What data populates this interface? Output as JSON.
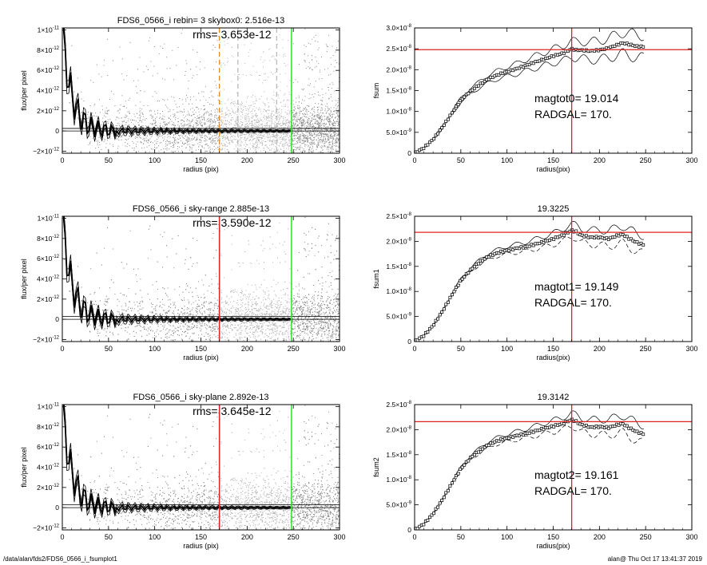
{
  "footer": {
    "left": "/data/alan/fds2/FDS6_0566_i_fsumplot1",
    "right": "alan@  Thu Oct 17 13:41:37 2019"
  },
  "chart_data": [
    {
      "id": "profile-0",
      "type": "scatter",
      "title": "FDS6_0566_i rebin= 3    skybox0:  2.516e-13",
      "annotation": "rms= 3.653e-12",
      "xlabel": "radius (pix)",
      "ylabel": "flux/per pixel",
      "xlim": [
        0,
        300
      ],
      "ylim": [
        -2.2e-12,
        1.02e-11
      ],
      "xticks": [
        0,
        50,
        100,
        150,
        200,
        250,
        300
      ],
      "yticks": [
        {
          "value": 1e-11,
          "label": "1×10",
          "exp": "-11"
        },
        {
          "value": 8e-12,
          "label": "8×10",
          "exp": "-12"
        },
        {
          "value": 6e-12,
          "label": "6×10",
          "exp": "-12"
        },
        {
          "value": 4e-12,
          "label": "4×10",
          "exp": "-12"
        },
        {
          "value": 2e-12,
          "label": "2×10",
          "exp": "-12"
        },
        {
          "value": 0,
          "label": "0",
          "exp": ""
        },
        {
          "value": -2e-12,
          "label": "−2×10",
          "exp": "-12"
        }
      ],
      "sky_level": 2.516e-13,
      "vlines": [
        {
          "x": 170,
          "color": "#e08a2c",
          "style": "dashed"
        },
        {
          "x": 190,
          "color": "#bbbbbb",
          "style": "dashed"
        },
        {
          "x": 232,
          "color": "#bbbbbb",
          "style": "dashed"
        },
        {
          "x": 248,
          "color": "#33dd33",
          "style": "solid"
        }
      ]
    },
    {
      "id": "profile-1",
      "type": "scatter",
      "title": "FDS6_0566_i sky-range  2.885e-13",
      "annotation": "rms= 3.590e-12",
      "xlabel": "radius (pix)",
      "ylabel": "flux/per pixel",
      "xlim": [
        0,
        300
      ],
      "ylim": [
        -2.2e-12,
        1.02e-11
      ],
      "xticks": [
        0,
        50,
        100,
        150,
        200,
        250,
        300
      ],
      "yticks": [
        {
          "value": 1e-11,
          "label": "1×10",
          "exp": "-11"
        },
        {
          "value": 8e-12,
          "label": "8×10",
          "exp": "-12"
        },
        {
          "value": 6e-12,
          "label": "6×10",
          "exp": "-12"
        },
        {
          "value": 4e-12,
          "label": "4×10",
          "exp": "-12"
        },
        {
          "value": 2e-12,
          "label": "2×10",
          "exp": "-12"
        },
        {
          "value": 0,
          "label": "0",
          "exp": ""
        },
        {
          "value": -2e-12,
          "label": "−2×10",
          "exp": "-12"
        }
      ],
      "sky_level": 2.885e-13,
      "vlines": [
        {
          "x": 170,
          "color": "#dd2222",
          "style": "solid"
        },
        {
          "x": 248,
          "color": "#33dd33",
          "style": "solid"
        }
      ]
    },
    {
      "id": "profile-2",
      "type": "scatter",
      "title": "FDS6_0566_i sky-plane  2.892e-13",
      "annotation": "rms= 3.645e-12",
      "xlabel": "radius (pix)",
      "ylabel": "flux/per pixel",
      "xlim": [
        0,
        300
      ],
      "ylim": [
        -2.2e-12,
        1.02e-11
      ],
      "xticks": [
        0,
        50,
        100,
        150,
        200,
        250,
        300
      ],
      "yticks": [
        {
          "value": 1e-11,
          "label": "1×10",
          "exp": "-11"
        },
        {
          "value": 8e-12,
          "label": "8×10",
          "exp": "-12"
        },
        {
          "value": 6e-12,
          "label": "6×10",
          "exp": "-12"
        },
        {
          "value": 4e-12,
          "label": "4×10",
          "exp": "-12"
        },
        {
          "value": 2e-12,
          "label": "2×10",
          "exp": "-12"
        },
        {
          "value": 0,
          "label": "0",
          "exp": ""
        },
        {
          "value": -2e-12,
          "label": "−2×10",
          "exp": "-12"
        }
      ],
      "sky_level": 2.892e-13,
      "vlines": [
        {
          "x": 170,
          "color": "#dd2222",
          "style": "solid"
        },
        {
          "x": 248,
          "color": "#33dd33",
          "style": "solid"
        }
      ]
    },
    {
      "id": "growth-0",
      "type": "line",
      "title": "",
      "xlabel": "radius(pix)",
      "ylabel": "fsum",
      "xlim": [
        0,
        300
      ],
      "ylim": [
        0,
        3e-08
      ],
      "xticks": [
        0,
        50,
        100,
        150,
        200,
        250,
        300
      ],
      "yticks": [
        {
          "value": 3e-08,
          "label": "3.0×10",
          "exp": "-8"
        },
        {
          "value": 2.5e-08,
          "label": "2.5×10",
          "exp": "-8"
        },
        {
          "value": 2e-08,
          "label": "2.0×10",
          "exp": "-8"
        },
        {
          "value": 1.5e-08,
          "label": "1.5×10",
          "exp": "-8"
        },
        {
          "value": 1e-08,
          "label": "1.0×10",
          "exp": "-8"
        },
        {
          "value": 5e-09,
          "label": "5.0×10",
          "exp": "-9"
        },
        {
          "value": 0,
          "label": "0",
          "exp": ""
        }
      ],
      "magtext": "magtot0=  19.014",
      "radtext": "RADGAL=    170.",
      "hline": 2.48e-08,
      "vline": 170,
      "x": [
        0,
        10,
        20,
        30,
        40,
        50,
        60,
        70,
        80,
        90,
        100,
        110,
        120,
        130,
        140,
        150,
        160,
        165,
        170,
        175,
        180,
        190,
        200,
        210,
        220,
        225,
        230,
        240,
        248
      ],
      "values": [
        0,
        1.3e-09,
        3.3e-09,
        6.2e-09,
        9.5e-09,
        1.27e-08,
        1.48e-08,
        1.64e-08,
        1.78e-08,
        1.88e-08,
        1.95e-08,
        2.02e-08,
        2.1e-08,
        2.18e-08,
        2.25e-08,
        2.33e-08,
        2.39e-08,
        2.44e-08,
        2.5e-08,
        2.47e-08,
        2.47e-08,
        2.45e-08,
        2.47e-08,
        2.52e-08,
        2.6e-08,
        2.64e-08,
        2.62e-08,
        2.56e-08,
        2.55e-08
      ],
      "spread": 1.5
    },
    {
      "id": "growth-1",
      "type": "line",
      "title": "19.3225",
      "xlabel": "radius(pix)",
      "ylabel": "fsum1",
      "xlim": [
        0,
        300
      ],
      "ylim": [
        0,
        2.5e-08
      ],
      "xticks": [
        0,
        50,
        100,
        150,
        200,
        250,
        300
      ],
      "yticks": [
        {
          "value": 2.5e-08,
          "label": "2.5×10",
          "exp": "-8"
        },
        {
          "value": 2e-08,
          "label": "2.0×10",
          "exp": "-8"
        },
        {
          "value": 1.5e-08,
          "label": "1.5×10",
          "exp": "-8"
        },
        {
          "value": 1e-08,
          "label": "1.0×10",
          "exp": "-8"
        },
        {
          "value": 5e-09,
          "label": "5.0×10",
          "exp": "-9"
        },
        {
          "value": 0,
          "label": "0",
          "exp": ""
        }
      ],
      "magtext": "magtot1=  19.149",
      "radtext": "RADGAL=    170.",
      "hline": 2.18e-08,
      "vline": 170,
      "x": [
        0,
        10,
        20,
        30,
        40,
        50,
        60,
        70,
        80,
        90,
        100,
        110,
        120,
        130,
        140,
        150,
        160,
        170,
        175,
        180,
        190,
        200,
        210,
        220,
        225,
        230,
        240,
        248
      ],
      "values": [
        0,
        1.2e-09,
        3.2e-09,
        6e-09,
        9.2e-09,
        1.22e-08,
        1.42e-08,
        1.58e-08,
        1.7e-08,
        1.77e-08,
        1.82e-08,
        1.86e-08,
        1.89e-08,
        1.94e-08,
        1.99e-08,
        2.05e-08,
        2.12e-08,
        2.22e-08,
        2.19e-08,
        2.12e-08,
        2.08e-08,
        2.08e-08,
        2.05e-08,
        2.12e-08,
        2.14e-08,
        2.08e-08,
        1.98e-08,
        1.93e-08
      ],
      "spread": 1.0
    },
    {
      "id": "growth-2",
      "type": "line",
      "title": "19.3142",
      "xlabel": "radius(pix)",
      "ylabel": "fsum2",
      "xlim": [
        0,
        300
      ],
      "ylim": [
        0,
        2.5e-08
      ],
      "xticks": [
        0,
        50,
        100,
        150,
        200,
        250,
        300
      ],
      "yticks": [
        {
          "value": 2.5e-08,
          "label": "2.5×10",
          "exp": "-8"
        },
        {
          "value": 2e-08,
          "label": "2.0×10",
          "exp": "-8"
        },
        {
          "value": 1.5e-08,
          "label": "1.5×10",
          "exp": "-8"
        },
        {
          "value": 1e-08,
          "label": "1.0×10",
          "exp": "-8"
        },
        {
          "value": 5e-09,
          "label": "5.0×10",
          "exp": "-9"
        },
        {
          "value": 0,
          "label": "0",
          "exp": ""
        }
      ],
      "magtext": "magtot2=  19.161",
      "radtext": "RADGAL=    170.",
      "hline": 2.16e-08,
      "vline": 170,
      "x": [
        0,
        10,
        20,
        30,
        40,
        50,
        60,
        70,
        80,
        90,
        100,
        110,
        120,
        130,
        140,
        150,
        160,
        170,
        175,
        180,
        190,
        200,
        210,
        220,
        225,
        230,
        240,
        248
      ],
      "values": [
        0,
        1.2e-09,
        3.2e-09,
        6e-09,
        9.2e-09,
        1.22e-08,
        1.43e-08,
        1.58e-08,
        1.7e-08,
        1.78e-08,
        1.83e-08,
        1.88e-08,
        1.92e-08,
        1.97e-08,
        2.02e-08,
        2.07e-08,
        2.12e-08,
        2.2e-08,
        2.16e-08,
        2.1e-08,
        2.05e-08,
        2.06e-08,
        2.04e-08,
        2.1e-08,
        2.12e-08,
        2.06e-08,
        1.96e-08,
        1.91e-08
      ],
      "spread": 1.0
    }
  ]
}
